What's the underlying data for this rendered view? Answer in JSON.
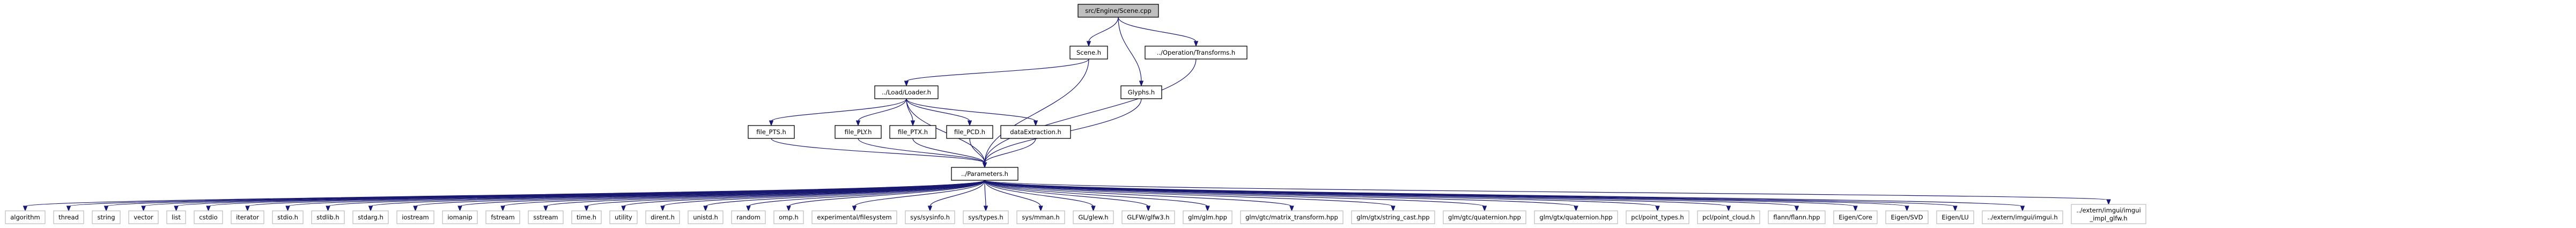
{
  "graph": {
    "edge_color": "#191970",
    "root_fill": "#bfbfbf",
    "nodes": {
      "scene_cpp": "src/Engine/Scene.cpp",
      "scene_h": "Scene.h",
      "glyphs_h": "Glyphs.h",
      "transforms_h": "../Operation/Transforms.h",
      "loader_h": "../Load/Loader.h",
      "file_pts": "file_PTS.h",
      "file_ptx": "file_PLY.h",
      "file_ptx2": "file_PTX.h",
      "file_pcd": "file_PCD.h",
      "dataextraction": "dataExtraction.h",
      "parameters_h": "../Parameters.h",
      "algorithm": "algorithm",
      "thread": "thread",
      "string": "string",
      "vector": "vector",
      "list": "list",
      "cstdio": "cstdio",
      "iterator": "iterator",
      "stdio_h": "stdio.h",
      "stdlib_h": "stdlib.h",
      "stdarg_h": "stdarg.h",
      "iostream": "iostream",
      "iomanip": "iomanip",
      "fstream": "fstream",
      "sstream": "sstream",
      "time_h": "time.h",
      "utility": "utility",
      "dirent_h": "dirent.h",
      "unistd_h": "unistd.h",
      "random": "random",
      "omp_h": "omp.h",
      "exp_fs": "experimental/filesystem",
      "sys_sysinfo": "sys/sysinfo.h",
      "sys_types": "sys/types.h",
      "sys_mman": "sys/mman.h",
      "gl_glew": "GL/glew.h",
      "glfw": "GLFW/glfw3.h",
      "glm_hpp": "glm/glm.hpp",
      "glm_matrix": "glm/gtc/matrix_transform.hpp",
      "glm_stringcast": "glm/gtx/string_cast.hpp",
      "glm_gtc_quat": "glm/gtc/quaternion.hpp",
      "glm_gtx_quat": "glm/gtx/quaternion.hpp",
      "pcl_types": "pcl/point_types.h",
      "pcl_cloud": "pcl/point_cloud.h",
      "flann": "flann/flann.hpp",
      "eigen_core": "Eigen/Core",
      "eigen_svd": "Eigen/SVD",
      "eigen_lu": "Eigen/LU",
      "imgui": "../extern/imgui/imgui.h",
      "imgui_glfw_1": "../extern/imgui/imgui",
      "imgui_glfw_2": "_impl_glfw.h"
    }
  }
}
